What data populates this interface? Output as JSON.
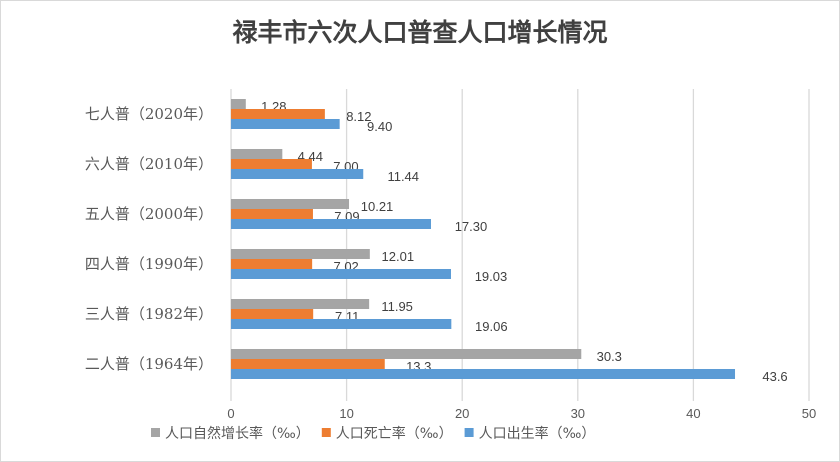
{
  "chart_data": {
    "type": "bar",
    "orientation": "horizontal",
    "title": "禄丰市六次人口普查人口增长情况",
    "categories": [
      "七人普（2020年）",
      "六人普（2010年）",
      "五人普（2000年）",
      "四人普（1990年）",
      "三人普（1982年）",
      "二人普（1964年）"
    ],
    "series": [
      {
        "name": "人口自然增长率（‰）",
        "color": "#a5a5a5",
        "values": [
          1.28,
          4.44,
          10.21,
          12.01,
          11.95,
          30.3
        ],
        "labels": [
          "1.28",
          "4.44",
          "10.21",
          "12.01",
          "11.95",
          "30.3"
        ]
      },
      {
        "name": "人口死亡率（‰）",
        "color": "#ed7d31",
        "values": [
          8.12,
          7.0,
          7.09,
          7.02,
          7.11,
          13.3
        ],
        "labels": [
          "8.12",
          "7.00",
          "7.09",
          "7.02",
          "7.11",
          "13.3"
        ]
      },
      {
        "name": "人口出生率（‰）",
        "color": "#5b9bd5",
        "values": [
          9.4,
          11.44,
          17.3,
          19.03,
          19.06,
          43.6
        ],
        "labels": [
          "9.40",
          "11.44",
          "17.30",
          "19.03",
          "19.06",
          "43.6"
        ]
      }
    ],
    "xlim": [
      0,
      50
    ],
    "xticks": [
      "0",
      "10",
      "20",
      "30",
      "40",
      "50"
    ],
    "grid": true,
    "legend": "bottom",
    "xlabel": "",
    "ylabel": ""
  }
}
